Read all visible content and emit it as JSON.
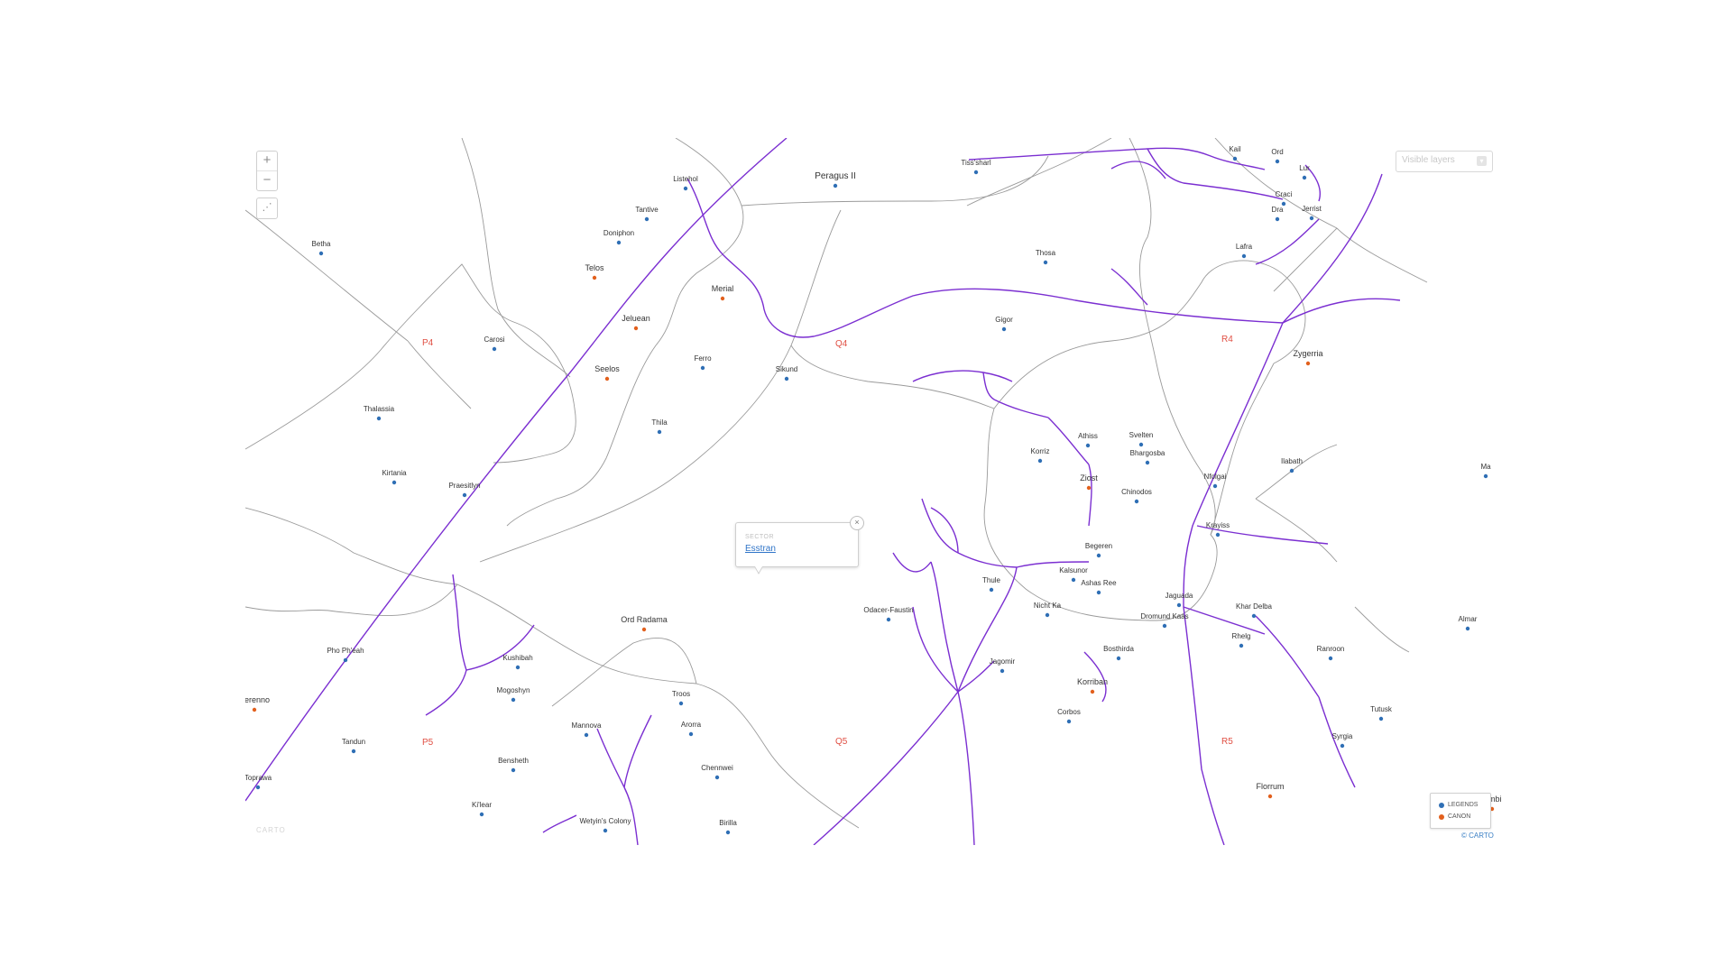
{
  "controls": {
    "zoom_in": "+",
    "zoom_out": "−",
    "fit_icon": "⋰",
    "layers_placeholder": "Visible layers",
    "layers_caret": "▾"
  },
  "popup": {
    "label": "SECTOR",
    "value": "Esstran",
    "close": "×"
  },
  "legend": [
    {
      "name": "LEGENDS",
      "color": "#2f6fb5"
    },
    {
      "name": "CANON",
      "color": "#e2601d"
    }
  ],
  "attribution": "© CARTO",
  "logo": "CARTO",
  "colors": {
    "route": "#7b2fd1",
    "border": "#9a9a9a",
    "grid_label": "#e04f43",
    "label": "#333333"
  },
  "grid_labels": [
    "P4",
    "Q4",
    "R4",
    "P5",
    "Q5",
    "R5"
  ],
  "systems": [
    {
      "name": "Betha",
      "kind": "legends"
    },
    {
      "name": "Carosi",
      "kind": "legends"
    },
    {
      "name": "Thalassia",
      "kind": "legends"
    },
    {
      "name": "Kirtania",
      "kind": "legends"
    },
    {
      "name": "Praesitlyn",
      "kind": "legends"
    },
    {
      "name": "Pho Ph'eah",
      "kind": "legends"
    },
    {
      "name": "Serenno",
      "kind": "canon"
    },
    {
      "name": "Tandun",
      "kind": "legends"
    },
    {
      "name": "Toprawa",
      "kind": "legends"
    },
    {
      "name": "Listehol",
      "kind": "legends"
    },
    {
      "name": "Tantive",
      "kind": "legends"
    },
    {
      "name": "Doniphon",
      "kind": "legends"
    },
    {
      "name": "Telos",
      "kind": "canon"
    },
    {
      "name": "Jeluean",
      "kind": "canon"
    },
    {
      "name": "Seelos",
      "kind": "canon"
    },
    {
      "name": "Ferro",
      "kind": "legends"
    },
    {
      "name": "Thila",
      "kind": "legends"
    },
    {
      "name": "Merial",
      "kind": "canon"
    },
    {
      "name": "Sikund",
      "kind": "legends"
    },
    {
      "name": "Peragus II",
      "kind": "legends"
    },
    {
      "name": "Tiss'sharl",
      "kind": "legends"
    },
    {
      "name": "Kail",
      "kind": "legends"
    },
    {
      "name": "Ord",
      "kind": "legends"
    },
    {
      "name": "Lur",
      "kind": "legends"
    },
    {
      "name": "Craci",
      "kind": "legends"
    },
    {
      "name": "Dra",
      "kind": "legends"
    },
    {
      "name": "Jerrist",
      "kind": "legends"
    },
    {
      "name": "Lafra",
      "kind": "legends"
    },
    {
      "name": "Thosa",
      "kind": "legends"
    },
    {
      "name": "Gigor",
      "kind": "legends"
    },
    {
      "name": "Zygerria",
      "kind": "canon"
    },
    {
      "name": "Korriz",
      "kind": "legends"
    },
    {
      "name": "Athiss",
      "kind": "legends"
    },
    {
      "name": "Svelten",
      "kind": "legends"
    },
    {
      "name": "Bhargosba",
      "kind": "legends"
    },
    {
      "name": "Nfolgai",
      "kind": "legends"
    },
    {
      "name": "Ziost",
      "kind": "canon"
    },
    {
      "name": "Chinodos",
      "kind": "legends"
    },
    {
      "name": "Krayiss",
      "kind": "legends"
    },
    {
      "name": "Begeren",
      "kind": "legends"
    },
    {
      "name": "Kalsunor",
      "kind": "legends"
    },
    {
      "name": "Ashas Ree",
      "kind": "legends"
    },
    {
      "name": "Jaguada",
      "kind": "legends"
    },
    {
      "name": "Khar Delba",
      "kind": "legends"
    },
    {
      "name": "Nicht Ka",
      "kind": "legends"
    },
    {
      "name": "Dromund Kaas",
      "kind": "legends"
    },
    {
      "name": "Rhelg",
      "kind": "legends"
    },
    {
      "name": "Bosthirda",
      "kind": "legends"
    },
    {
      "name": "Korriban",
      "kind": "canon"
    },
    {
      "name": "Ilabath",
      "kind": "legends"
    },
    {
      "name": "Thule",
      "kind": "legends"
    },
    {
      "name": "Ord Radama",
      "kind": "canon"
    },
    {
      "name": "Odacer-Faustin",
      "kind": "legends"
    },
    {
      "name": "Jagomir",
      "kind": "legends"
    },
    {
      "name": "Corbos",
      "kind": "legends"
    },
    {
      "name": "Florrum",
      "kind": "canon"
    },
    {
      "name": "Ranroon",
      "kind": "legends"
    },
    {
      "name": "Tutusk",
      "kind": "legends"
    },
    {
      "name": "Syrgia",
      "kind": "legends"
    },
    {
      "name": "Almar",
      "kind": "legends"
    },
    {
      "name": "Ma",
      "kind": "legends"
    },
    {
      "name": "Umbi",
      "kind": "canon"
    },
    {
      "name": "Kushibah",
      "kind": "legends"
    },
    {
      "name": "Mogoshyn",
      "kind": "legends"
    },
    {
      "name": "Mannova",
      "kind": "legends"
    },
    {
      "name": "Bensheth",
      "kind": "legends"
    },
    {
      "name": "Ki'lear",
      "kind": "legends"
    },
    {
      "name": "Wetyin's Colony",
      "kind": "legends"
    },
    {
      "name": "Troos",
      "kind": "legends"
    },
    {
      "name": "Arorra",
      "kind": "legends"
    },
    {
      "name": "Chennwei",
      "kind": "legends"
    },
    {
      "name": "Birilla",
      "kind": "legends"
    }
  ]
}
